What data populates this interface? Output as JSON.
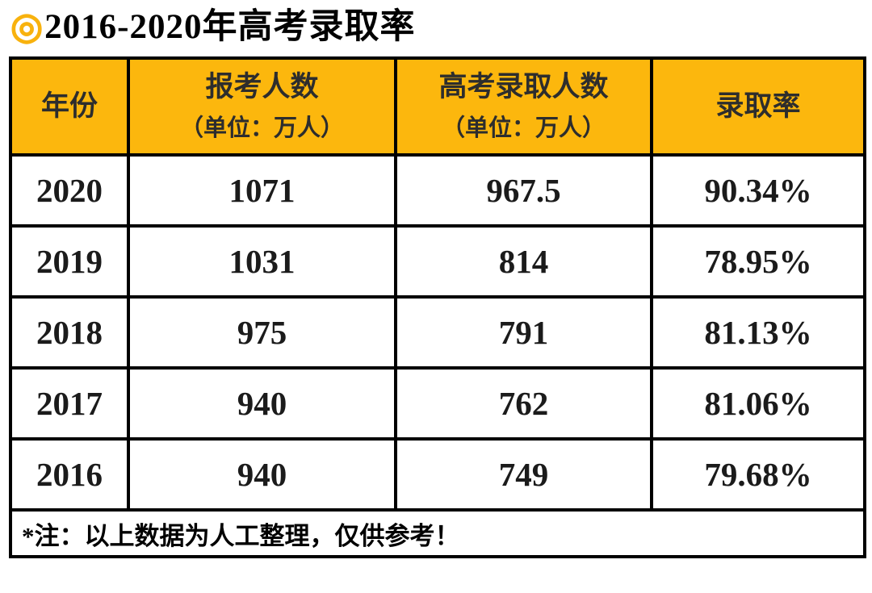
{
  "colors": {
    "accent_yellow": "#FCB70D",
    "title_icon_yellow": "#F8B20E",
    "header_text": "#2d2d2d",
    "body_text": "#1b1b1b",
    "border": "#000000",
    "background": "#FFFFFF"
  },
  "title": {
    "icon": "◎",
    "text": "2016-2020年高考录取率"
  },
  "table": {
    "columns": [
      {
        "id": "year",
        "label": "年份",
        "unit": ""
      },
      {
        "id": "applicants",
        "label": "报考人数",
        "unit": "（单位：万人）"
      },
      {
        "id": "admitted",
        "label": "高考录取人数",
        "unit": "（单位：万人）"
      },
      {
        "id": "rate",
        "label": "录取率",
        "unit": ""
      }
    ],
    "rows": [
      [
        "2020",
        "1071",
        "967.5",
        "90.34%"
      ],
      [
        "2019",
        "1031",
        "814",
        "78.95%"
      ],
      [
        "2018",
        "975",
        "791",
        "81.13%"
      ],
      [
        "2017",
        "940",
        "762",
        "81.06%"
      ],
      [
        "2016",
        "940",
        "749",
        "79.68%"
      ]
    ],
    "note": "*注：以上数据为人工整理，仅供参考！"
  },
  "chart_data": {
    "type": "table",
    "title": "2016-2020年高考录取率",
    "columns": [
      "年份",
      "报考人数（单位：万人）",
      "高考录取人数（单位：万人）",
      "录取率"
    ],
    "rows": [
      {
        "year": 2020,
        "applicants_10k": 1071,
        "admitted_10k": 967.5,
        "admission_rate": "90.34%"
      },
      {
        "year": 2019,
        "applicants_10k": 1031,
        "admitted_10k": 814,
        "admission_rate": "78.95%"
      },
      {
        "year": 2018,
        "applicants_10k": 975,
        "admitted_10k": 791,
        "admission_rate": "81.13%"
      },
      {
        "year": 2017,
        "applicants_10k": 940,
        "admitted_10k": 762,
        "admission_rate": "81.06%"
      },
      {
        "year": 2016,
        "applicants_10k": 940,
        "admitted_10k": 749,
        "admission_rate": "79.68%"
      }
    ],
    "note": "*注：以上数据为人工整理，仅供参考！",
    "layout": "header row yellow (#FCB70D), black 4px grid borders, footnote row spans all columns"
  }
}
